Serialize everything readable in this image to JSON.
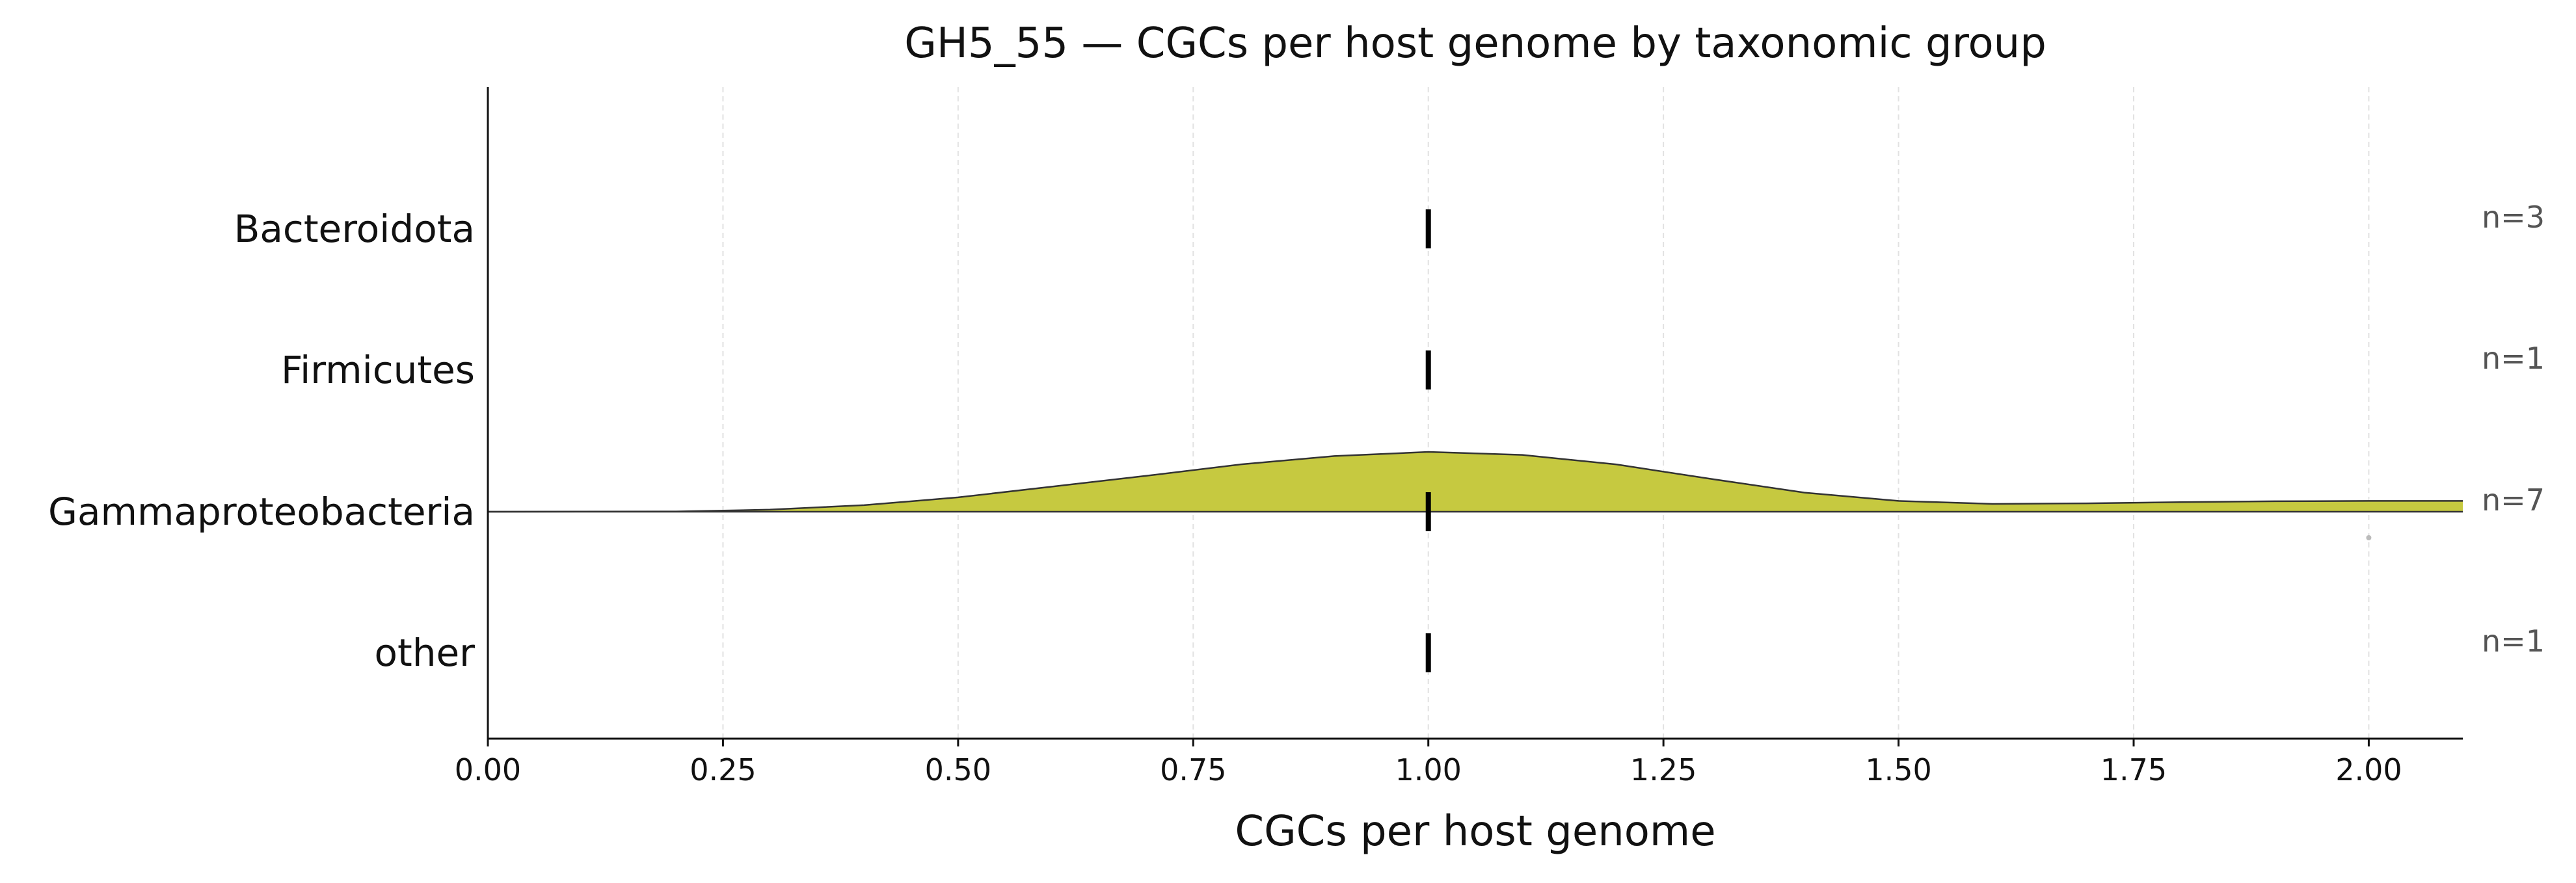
{
  "chart_data": {
    "type": "ridgeline",
    "title": "GH5_55 — CGCs per host genome by taxonomic group",
    "xlabel": "CGCs per host genome",
    "ylabel": "",
    "xlim": [
      0,
      2.1
    ],
    "x_ticks": [
      0.0,
      0.25,
      0.5,
      0.75,
      1.0,
      1.25,
      1.5,
      1.75,
      2.0
    ],
    "x_tick_labels": [
      "0.00",
      "0.25",
      "0.50",
      "0.75",
      "1.00",
      "1.25",
      "1.50",
      "1.75",
      "2.00"
    ],
    "grid": "vertical dashed",
    "groups": [
      {
        "name": "Bacteroidota",
        "n_label": "n=3",
        "median": 1.0,
        "values": [
          1,
          1,
          1
        ],
        "has_density": false
      },
      {
        "name": "Firmicutes",
        "n_label": "n=1",
        "median": 1.0,
        "values": [
          1
        ],
        "has_density": false
      },
      {
        "name": "Gammaproteobacteria",
        "n_label": "n=7",
        "median": 1.0,
        "values": [
          1,
          1,
          1,
          1,
          1,
          1,
          2
        ],
        "has_density": true,
        "density_x": [
          0.0,
          0.2,
          0.3,
          0.4,
          0.5,
          0.6,
          0.7,
          0.8,
          0.9,
          1.0,
          1.1,
          1.2,
          1.3,
          1.4,
          1.5,
          1.6,
          1.7,
          1.8,
          1.9,
          2.0,
          2.1
        ],
        "density_y": [
          0.0,
          0.004,
          0.035,
          0.11,
          0.24,
          0.42,
          0.6,
          0.79,
          0.93,
          1.0,
          0.95,
          0.79,
          0.55,
          0.32,
          0.18,
          0.13,
          0.14,
          0.16,
          0.175,
          0.18,
          0.18
        ]
      },
      {
        "name": "other",
        "n_label": "n=1",
        "median": 1.0,
        "values": [
          1
        ],
        "has_density": false
      }
    ],
    "fill_color": "#c6c940",
    "outline_color": "#333333",
    "median_color": "#000000",
    "outlier_color": "#bbbbbb",
    "outliers": [
      {
        "group": "Gammaproteobacteria",
        "x": 2.0
      }
    ]
  }
}
